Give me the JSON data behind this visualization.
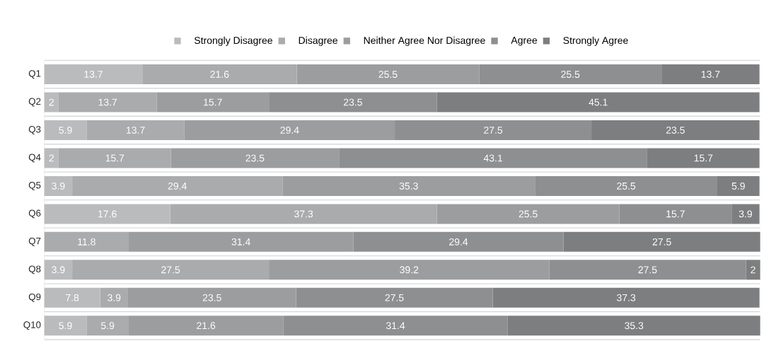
{
  "chart_data": {
    "type": "bar",
    "orientation": "horizontal",
    "stacked": true,
    "data_labels": true,
    "legend": "top",
    "grid": "y",
    "tick_labels": "y",
    "categories": [
      "Q1",
      "Q2",
      "Q3",
      "Q4",
      "Q5",
      "Q6",
      "Q7",
      "Q8",
      "Q9",
      "Q10"
    ],
    "series": [
      {
        "name": "Strongly Disagree",
        "color": "#babbbd",
        "values": [
          13.7,
          2,
          5.9,
          2,
          3.9,
          17.6,
          null,
          3.9,
          7.8,
          5.9
        ]
      },
      {
        "name": "Disagree",
        "color": "#aaabad",
        "values": [
          21.6,
          13.7,
          13.7,
          15.7,
          29.4,
          37.3,
          11.8,
          27.5,
          3.9,
          5.9
        ]
      },
      {
        "name": "Neither Agree Nor Disagree",
        "color": "#9c9d9f",
        "values": [
          25.5,
          15.7,
          29.4,
          23.5,
          35.3,
          25.5,
          31.4,
          39.2,
          23.5,
          21.6
        ]
      },
      {
        "name": "Agree",
        "color": "#8e8f91",
        "values": [
          25.5,
          23.5,
          27.5,
          43.1,
          25.5,
          15.7,
          29.4,
          27.5,
          27.5,
          31.4
        ]
      },
      {
        "name": "Strongly Agree",
        "color": "#7d7e80",
        "values": [
          13.7,
          45.1,
          23.5,
          15.7,
          5.9,
          3.9,
          27.5,
          2,
          37.3,
          35.3
        ]
      }
    ]
  }
}
